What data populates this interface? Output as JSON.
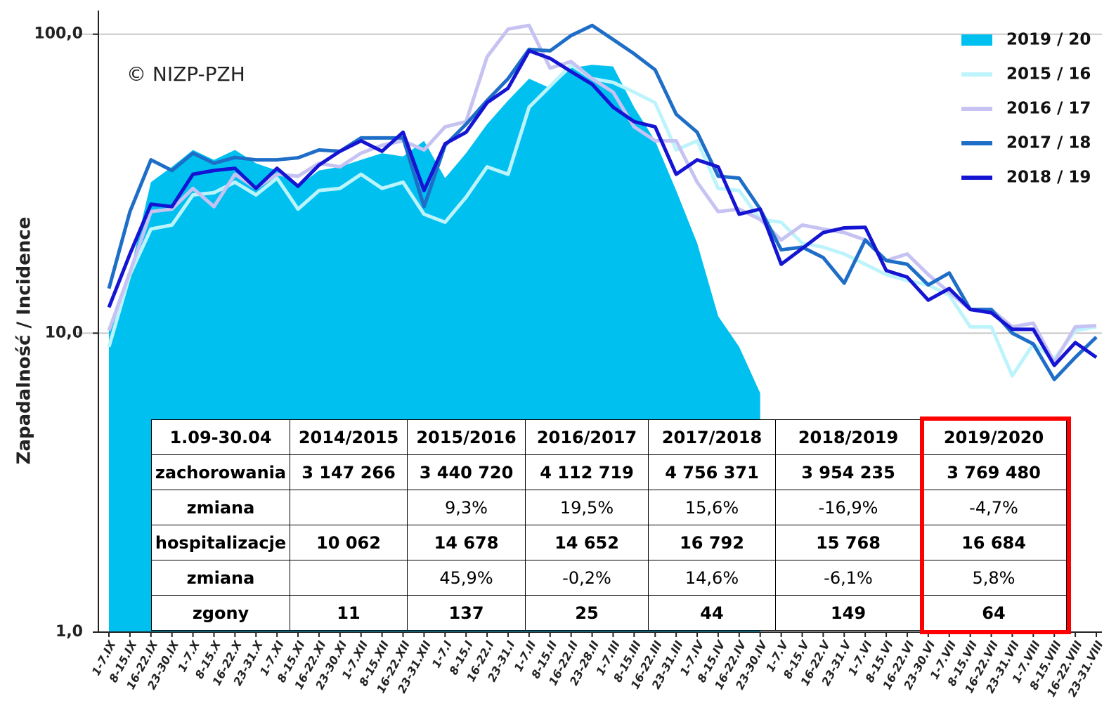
{
  "chart_data": {
    "type": "line",
    "annotation": "© NIZP-PZH",
    "y_label": "Zapadalność  /  Incidence",
    "log_y": true,
    "grid": true,
    "legend": "upper right",
    "ylim": [
      1,
      120
    ],
    "yticks": [
      {
        "value": 1,
        "label": "1,0"
      },
      {
        "value": 10,
        "label": "10,0"
      },
      {
        "value": 100,
        "label": "100,0"
      }
    ],
    "categories": [
      "1-7.IX",
      "8-15.IX",
      "16-22.IX",
      "23-30.IX",
      "1-7.X",
      "8-15.X",
      "16-22.X",
      "23-31.X",
      "1-7.XI",
      "8-15.XI",
      "16-22.XI",
      "23-30.XI",
      "1-7.XII",
      "8-15.XII",
      "16-22.XII",
      "23-31.XII",
      "1-7.I",
      "8-15.I",
      "16-22.I",
      "23-31.I",
      "1-7.II",
      "8-15.II",
      "16-22.II",
      "23-28.II",
      "1-7.III",
      "8-15.III",
      "16-22.III",
      "23-31.III",
      "1-7.IV",
      "8-15.IV",
      "16-22.IV",
      "23-30.IV",
      "1-7.V",
      "8-15.V",
      "16-22.V",
      "23-31.V",
      "1-7.VI",
      "8-15.VI",
      "16-22.VI",
      "23-30.VI",
      "1-7.VII",
      "8-15.VII",
      "16-22.VII",
      "23-31.VII",
      "1-7.VIII",
      "8-15.VIII",
      "16-22.VIII",
      "23-31.VIII"
    ],
    "series": [
      {
        "name": "2019 / 20",
        "type": "area",
        "color": "#00c0f0",
        "values": [
          10.2,
          16,
          32,
          36,
          41,
          38,
          41,
          37,
          35,
          31,
          35,
          36,
          38,
          40,
          39,
          44,
          33,
          40,
          50,
          60,
          71,
          66,
          77,
          79,
          78,
          57,
          44,
          30,
          20,
          11.4,
          9.0,
          6.3,
          null,
          null,
          null,
          null,
          null,
          null,
          null,
          null,
          null,
          null,
          null,
          null,
          null,
          null,
          null,
          null
        ]
      },
      {
        "name": "2015 / 16",
        "type": "line",
        "color": "#bdf4fc",
        "values": [
          9,
          15.7,
          22.3,
          23,
          29,
          29.5,
          32,
          29,
          33,
          26,
          30,
          30.5,
          34,
          30.5,
          32,
          25,
          23.5,
          28.5,
          36,
          34,
          57,
          67,
          79,
          71,
          69,
          64,
          59,
          41,
          44,
          30.5,
          30,
          24,
          23.5,
          20,
          19.4,
          18.4,
          17,
          15.7,
          15,
          14.5,
          13.4,
          10.5,
          10.5,
          7.2,
          9.2,
          8.2,
          10.2,
          10.5
        ]
      },
      {
        "name": "2016 / 17",
        "type": "line",
        "color": "#c6c2f2",
        "values": [
          10.2,
          16,
          25.5,
          26,
          30.5,
          26.5,
          34,
          30.5,
          34,
          33.5,
          37,
          36,
          40,
          42.5,
          44,
          41,
          49,
          51,
          84,
          104,
          107,
          77,
          81,
          71,
          64,
          49,
          44,
          44,
          32,
          25.5,
          26,
          24,
          20.5,
          23,
          22.3,
          21.7,
          20.5,
          17.5,
          18.4,
          15.7,
          13.7,
          12,
          12,
          10.5,
          10.8,
          8,
          10.5,
          10.6
        ]
      },
      {
        "name": "2017 / 18",
        "type": "line",
        "color": "#1e6ec8",
        "values": [
          14.1,
          25.5,
          38,
          35,
          40,
          37,
          38.7,
          38,
          38,
          38.6,
          41,
          40.6,
          45,
          45,
          45,
          26.5,
          42.5,
          50,
          60,
          71,
          89,
          88,
          99,
          107,
          96,
          86,
          76,
          54,
          47,
          33.5,
          33,
          26,
          19,
          19.4,
          17.9,
          14.7,
          20.5,
          17.5,
          17,
          14.5,
          15.9,
          12,
          12,
          10,
          9.2,
          7,
          8.3,
          9.7
        ]
      },
      {
        "name": "2018 / 19",
        "type": "line",
        "color": "#1414d2",
        "values": [
          12.2,
          18.4,
          27,
          26.5,
          34,
          35,
          35.6,
          30.5,
          35.6,
          31,
          36.5,
          40.6,
          44,
          40.6,
          47,
          30,
          43,
          47,
          59,
          66,
          88,
          83,
          75,
          68,
          57,
          51,
          49,
          34,
          38,
          36,
          25,
          26,
          17,
          19.2,
          21.7,
          22.5,
          22.6,
          16.2,
          15.4,
          12.9,
          14.1,
          12,
          11.7,
          10.3,
          10.3,
          7.8,
          9.3,
          8.3
        ]
      }
    ]
  },
  "table": {
    "rows": [
      [
        "1.09-30.04",
        "2014/2015",
        "2015/2016",
        "2016/2017",
        "2017/2018",
        "2018/2019",
        "2019/2020"
      ],
      [
        "zachorowania",
        "3 147 266",
        "3 440 720",
        "4 112 719",
        "4 756 371",
        "3 954 235",
        "3 769 480"
      ],
      [
        "zmiana",
        null,
        "9,3%",
        "19,5%",
        "15,6%",
        "-16,9%",
        "-4,7%"
      ],
      [
        "hospitalizacje",
        "10 062",
        "14 678",
        "14 652",
        "16 792",
        "15 768",
        "16 684"
      ],
      [
        "zmiana",
        null,
        "45,9%",
        "-0,2%",
        "14,6%",
        "-6,1%",
        "5,8%"
      ],
      [
        "zgony",
        "11",
        "137",
        "25",
        "44",
        "149",
        "64"
      ]
    ],
    "bold_rows": [
      0,
      1,
      3,
      5
    ]
  }
}
